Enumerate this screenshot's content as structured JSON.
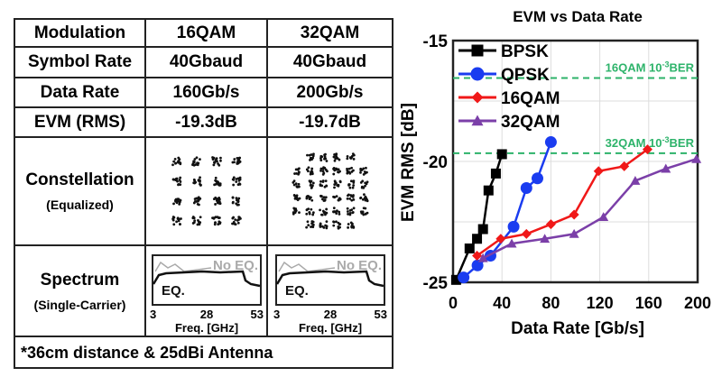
{
  "table": {
    "rows": [
      {
        "label": "Modulation",
        "c1": "16QAM",
        "c2": "32QAM"
      },
      {
        "label": "Symbol Rate",
        "c1": "40Gbaud",
        "c2": "40Gbaud"
      },
      {
        "label": "Data Rate",
        "c1": "160Gb/s",
        "c2": "200Gb/s"
      },
      {
        "label": "EVM (RMS)",
        "c1": "-19.3dB",
        "c2": "-19.7dB"
      }
    ],
    "constellation_label": "Constellation",
    "constellation_sub": "(Equalized)",
    "spectrum_label": "Spectrum",
    "spectrum_sub": "(Single-Carrier)",
    "spectrum": {
      "no_eq": "No EQ.",
      "eq": "EQ.",
      "ticks": [
        "3",
        "28",
        "53"
      ],
      "xlabel": "Freq. [GHz]"
    },
    "footnote": "*36cm distance & 25dBi Antenna"
  },
  "chart_data": {
    "type": "line",
    "title": "EVM vs Data Rate",
    "xlabel": "Data Rate [Gb/s]",
    "ylabel": "EVM RMS [dB]",
    "xlim": [
      0,
      200
    ],
    "ylim": [
      -25,
      -15
    ],
    "xticks": [
      "0",
      "40",
      "80",
      "120",
      "160",
      "200"
    ],
    "yticks": [
      "-15",
      "-20",
      "-25"
    ],
    "legend_position": "top-left",
    "series": [
      {
        "name": "BPSK",
        "color": "#000000",
        "marker": "square",
        "x": [
          2.5,
          13.5,
          19.6,
          24.5,
          29,
          35,
          40
        ],
        "y": [
          -24.9,
          -23.6,
          -23.2,
          -22.8,
          -21.2,
          -20.5,
          -19.7
        ]
      },
      {
        "name": "QPSK",
        "color": "#1a3cf0",
        "marker": "circle",
        "x": [
          8.6,
          20,
          30.6,
          49.5,
          60,
          69,
          80
        ],
        "y": [
          -24.8,
          -24.3,
          -23.9,
          -22.7,
          -21.1,
          -20.7,
          -19.2
        ]
      },
      {
        "name": "16QAM",
        "color": "#f01818",
        "marker": "diamond",
        "x": [
          19.6,
          39,
          60,
          80,
          99,
          119,
          140,
          159
        ],
        "y": [
          -23.9,
          -23.2,
          -23.0,
          -22.6,
          -22.2,
          -20.4,
          -20.2,
          -19.5
        ]
      },
      {
        "name": "32QAM",
        "color": "#7b3fa8",
        "marker": "triangle",
        "x": [
          24.5,
          48,
          75,
          99,
          123,
          149,
          174,
          199
        ],
        "y": [
          -24.0,
          -23.4,
          -23.2,
          -23.0,
          -22.3,
          -20.8,
          -20.3,
          -19.9
        ]
      }
    ],
    "reference_lines": [
      {
        "label_main": "16QAM 10",
        "label_sup": "-3",
        "label_end": "BER",
        "y": -16.55,
        "color": "#2db36a"
      },
      {
        "label_main": "32QAM 10",
        "label_sup": "-3",
        "label_end": "BER",
        "y": -19.66,
        "color": "#2db36a"
      }
    ]
  }
}
